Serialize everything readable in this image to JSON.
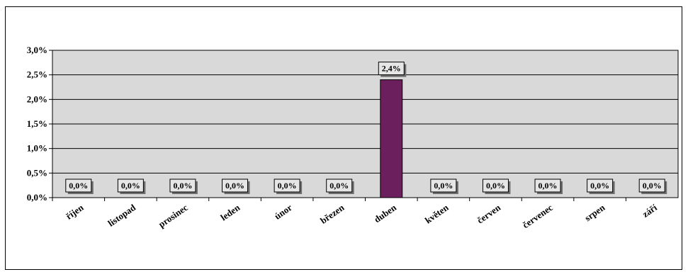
{
  "chart_data": {
    "type": "bar",
    "categories": [
      "říjen",
      "listopad",
      "prosinec",
      "leden",
      "únor",
      "březen",
      "duben",
      "květen",
      "červen",
      "červenec",
      "srpen",
      "září"
    ],
    "values": [
      0.0,
      0.0,
      0.0,
      0.0,
      0.0,
      0.0,
      2.4,
      0.0,
      0.0,
      0.0,
      0.0,
      0.0
    ],
    "data_labels": [
      "0,0%",
      "0,0%",
      "0,0%",
      "0,0%",
      "0,0%",
      "0,0%",
      "2,4%",
      "0,0%",
      "0,0%",
      "0,0%",
      "0,0%",
      "0,0%"
    ],
    "title": "",
    "xlabel": "",
    "ylabel": "",
    "ylim": [
      0,
      3.0
    ],
    "yticks": [
      0,
      0.5,
      1.0,
      1.5,
      2.0,
      2.5,
      3.0
    ],
    "ytick_labels": [
      "0,0%",
      "0,5%",
      "1,0%",
      "1,5%",
      "2,0%",
      "2,5%",
      "3,0%"
    ],
    "grid": true,
    "legend": "none",
    "colors": {
      "bar": "#6b1f5c",
      "plot_background": "#d9d9d9",
      "label_box": "#e6e6e6"
    }
  }
}
